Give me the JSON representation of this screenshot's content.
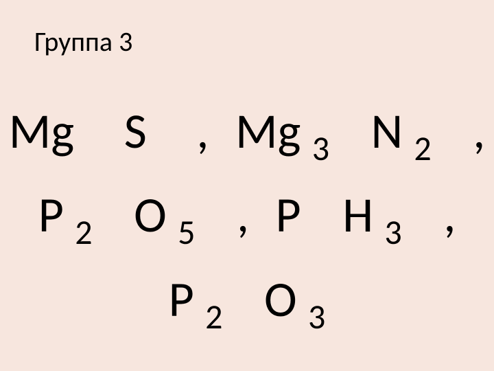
{
  "title": "Группа 3",
  "style": {
    "background_color": "#f7e6de",
    "text_color": "#000000",
    "title_fontsize": 40,
    "formula_fontsize": 72,
    "subscript_fontsize": 50,
    "font_family": "Calibri",
    "line_height": 1.7
  },
  "lines": [
    {
      "parts": {
        "e0": "Mg",
        "e1": "S",
        "c0": ",",
        "e2": "Mg",
        "s2": "3",
        "e3": "N",
        "s3": "2",
        "c1": ","
      }
    },
    {
      "parts": {
        "e0": "P",
        "s0": "2",
        "e1": "O",
        "s1": "5",
        "c0": ",",
        "e2": "P",
        "e3": "H",
        "s3": "3",
        "c1": ","
      }
    },
    {
      "parts": {
        "e0": "P",
        "s0": "2",
        "e1": "O",
        "s1": "3"
      }
    }
  ]
}
